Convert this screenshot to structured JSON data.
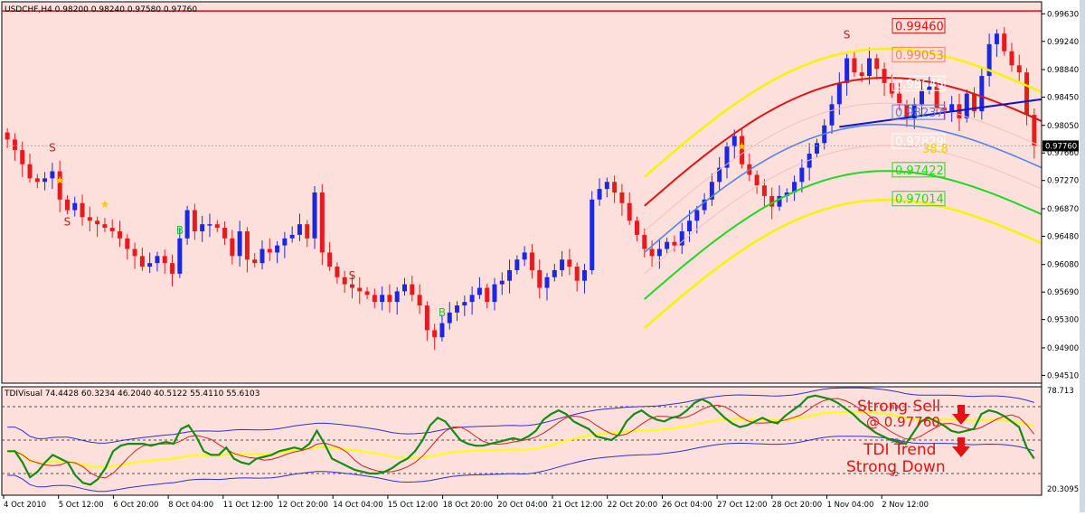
{
  "colors": {
    "background": "#fde0dc",
    "frame": "#ffffff",
    "bull": "#1c28e0",
    "bear": "#e61c1c",
    "outer_band": "#f5f500",
    "upper_band": "#e01414",
    "mid_band": "#5a82e6",
    "lower_band": "#21d821",
    "resistance_line": "#d41010",
    "trend_line": "#1414c8",
    "tdi_green": "#158a15",
    "tdi_red": "#d42020",
    "tdi_yellow": "#ffff00",
    "tdi_blue": "#3030d0",
    "annotation": "#e01414"
  },
  "main": {
    "title": "USDCHF,H4  0.98200 0.98240 0.97580 0.97760",
    "current_price": "0.97760",
    "price_labels": [
      {
        "text": "0.99460",
        "color": "#e01414"
      },
      {
        "text": "0.99053",
        "color": "#e9846a"
      },
      {
        "text": "0.98645",
        "color": "#ffffff"
      },
      {
        "text": "0.98237",
        "color": "#5a82e6"
      },
      {
        "text": "0.97829",
        "color": "#ffffff"
      },
      {
        "text": "0.97422",
        "color": "#21d821"
      },
      {
        "text": "0.97014",
        "color": "#21d821"
      }
    ],
    "label_38": "38.8",
    "markers": [
      {
        "text": "S",
        "color": "#c02020"
      },
      {
        "text": "S",
        "color": "#c02020"
      },
      {
        "text": "★",
        "color": "#ffcc00"
      },
      {
        "text": "★",
        "color": "#ffcc00"
      },
      {
        "text": "B",
        "color": "#21c821"
      },
      {
        "text": "S",
        "color": "#c02020"
      },
      {
        "text": "B",
        "color": "#21c821"
      },
      {
        "text": "★",
        "color": "#ffcc00"
      },
      {
        "text": "S",
        "color": "#c02020"
      }
    ]
  },
  "indicator": {
    "title": "TDIVisual 74.4428 60.3234 46.2040 40.5122 55.4110 55.6103",
    "level_labels": [
      "68",
      "50",
      "32"
    ],
    "annotation_sell": "Strong Sell",
    "annotation_price": "@ 0.97760",
    "annotation_trend1": "TDI Trend",
    "annotation_trend2": "Strong Down"
  },
  "chart_data": [
    {
      "type": "candlestick",
      "title": "USDCHF,H4",
      "ohlc_header": {
        "open": 0.982,
        "high": 0.9824,
        "low": 0.9758,
        "close": 0.9776
      },
      "ylim": [
        0.944,
        0.998
      ],
      "y_ticks": [
        "0.99630",
        "0.99240",
        "0.98840",
        "0.98450",
        "0.98050",
        "0.97660",
        "0.97270",
        "0.96870",
        "0.96480",
        "0.96080",
        "0.95690",
        "0.95300",
        "0.94900",
        "0.94510"
      ],
      "x_ticks": [
        "4 Oct 2010",
        "5 Oct 12:00",
        "6 Oct 20:00",
        "8 Oct 04:00",
        "11 Oct 12:00",
        "12 Oct 20:00",
        "14 Oct 04:00",
        "15 Oct 12:00",
        "18 Oct 20:00",
        "20 Oct 04:00",
        "21 Oct 12:00",
        "22 Oct 20:00",
        "26 Oct 04:00",
        "27 Oct 12:00",
        "28 Oct 20:00",
        "1 Nov 04:00",
        "2 Nov 12:00"
      ],
      "closes": [
        0.9785,
        0.977,
        0.975,
        0.973,
        0.9725,
        0.973,
        0.974,
        0.97,
        0.9685,
        0.9695,
        0.9675,
        0.967,
        0.9665,
        0.966,
        0.9655,
        0.9645,
        0.963,
        0.962,
        0.9605,
        0.961,
        0.962,
        0.961,
        0.9595,
        0.9645,
        0.9685,
        0.9655,
        0.9665,
        0.9665,
        0.966,
        0.9645,
        0.962,
        0.9655,
        0.9615,
        0.961,
        0.963,
        0.9625,
        0.9635,
        0.9645,
        0.965,
        0.9665,
        0.9645,
        0.971,
        0.9625,
        0.9605,
        0.959,
        0.958,
        0.9575,
        0.957,
        0.9565,
        0.9555,
        0.9565,
        0.9555,
        0.957,
        0.958,
        0.9565,
        0.955,
        0.9515,
        0.9505,
        0.9525,
        0.954,
        0.955,
        0.9555,
        0.9565,
        0.9575,
        0.9555,
        0.958,
        0.9585,
        0.96,
        0.9615,
        0.9625,
        0.96,
        0.9575,
        0.959,
        0.96,
        0.9615,
        0.9605,
        0.9585,
        0.96,
        0.97,
        0.9715,
        0.9725,
        0.971,
        0.9695,
        0.967,
        0.965,
        0.963,
        0.962,
        0.963,
        0.964,
        0.9635,
        0.9655,
        0.967,
        0.9685,
        0.97,
        0.9725,
        0.9745,
        0.9775,
        0.979,
        0.975,
        0.9735,
        0.972,
        0.9705,
        0.969,
        0.9705,
        0.971,
        0.9725,
        0.9745,
        0.9765,
        0.978,
        0.9805,
        0.9835,
        0.9865,
        0.99,
        0.988,
        0.9875,
        0.99,
        0.9885,
        0.9865,
        0.985,
        0.9835,
        0.9815,
        0.9835,
        0.9855,
        0.986,
        0.983,
        0.9825,
        0.9835,
        0.9815,
        0.985,
        0.9825,
        0.9875,
        0.992,
        0.9935,
        0.991,
        0.989,
        0.988,
        0.982,
        0.9776
      ]
    },
    {
      "type": "line",
      "title": "TDIVisual",
      "ylim": [
        20.3095,
        78.713
      ],
      "y_ticks": [
        "78.713",
        "20.3095"
      ],
      "levels": [
        68,
        50,
        32
      ],
      "legend_values": [
        74.4428,
        60.3234,
        46.204,
        40.5122,
        55.411,
        55.6103
      ],
      "green_values": [
        44,
        44,
        38,
        30,
        33,
        38,
        42,
        40,
        38,
        31,
        27,
        26,
        29,
        35,
        44,
        47,
        48,
        48,
        48,
        47,
        48,
        49,
        48,
        56,
        58,
        52,
        44,
        42,
        42,
        46,
        40,
        38,
        37,
        40,
        41,
        42,
        44,
        45,
        46,
        45,
        48,
        55,
        48,
        40,
        38,
        36,
        34,
        33,
        32,
        32,
        33,
        35,
        38,
        40,
        44,
        50,
        58,
        62,
        60,
        55,
        50,
        48,
        47,
        47,
        48,
        49,
        50,
        51,
        50,
        52,
        55,
        61,
        64,
        66,
        64,
        60,
        58,
        56,
        52,
        51,
        50,
        53,
        60,
        64,
        66,
        63,
        61,
        60,
        62,
        63,
        66,
        70,
        72,
        70,
        66,
        62,
        59,
        57,
        58,
        60,
        62,
        60,
        59,
        63,
        66,
        69,
        73,
        74,
        73,
        72,
        70,
        67,
        64,
        60,
        57,
        54,
        52,
        50,
        49,
        48,
        54,
        60,
        62,
        60,
        58,
        55,
        54,
        55,
        56,
        64,
        66,
        65,
        63,
        60,
        57,
        46,
        40
      ]
    }
  ]
}
